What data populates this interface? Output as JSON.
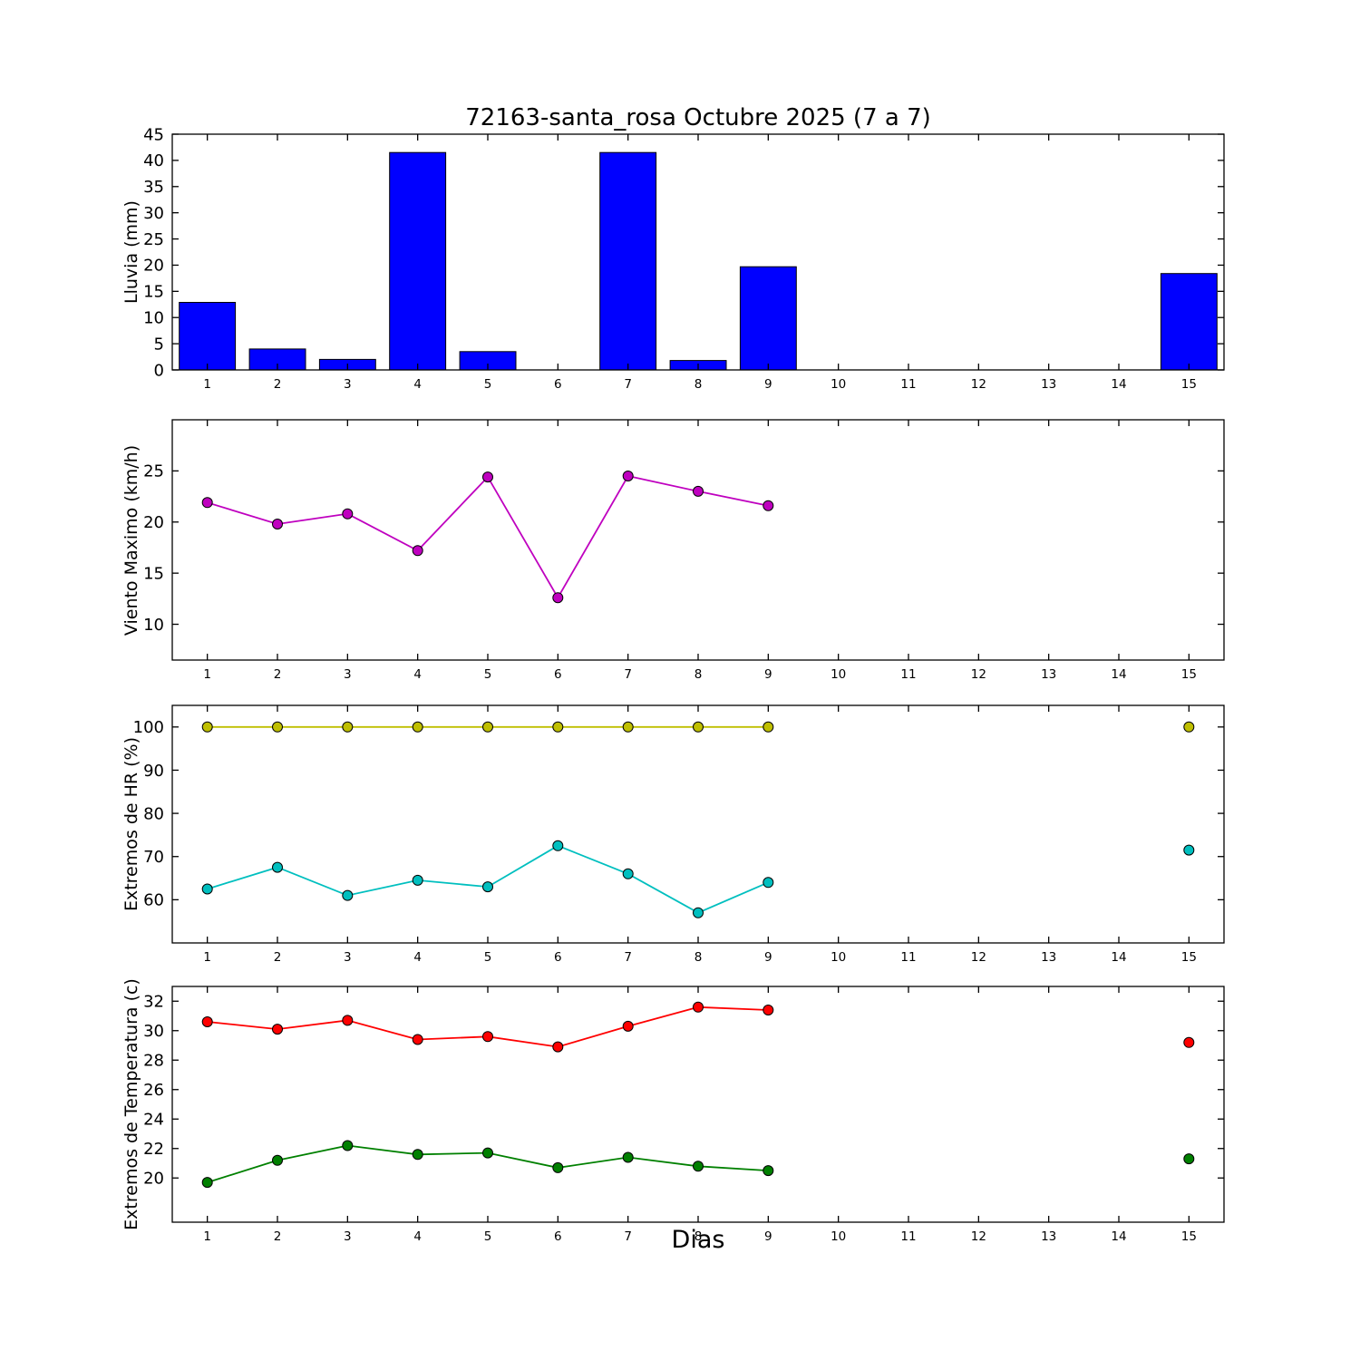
{
  "figure": {
    "title": "72163-santa_rosa Octubre 2025  (7 a 7)",
    "xlabel": "Dias",
    "background": "#ffffff"
  },
  "chart_data": [
    {
      "type": "bar",
      "name": "lluvia",
      "ylabel": "Lluvia (mm)",
      "bar_color": "#0000ff",
      "bar_edge_color": "#000000",
      "bar_width": 0.8,
      "x": [
        1,
        2,
        3,
        4,
        5,
        6,
        7,
        8,
        9,
        10,
        11,
        12,
        13,
        14,
        15
      ],
      "values": [
        12.9,
        4.0,
        2.0,
        41.5,
        3.5,
        0,
        41.5,
        1.8,
        19.7,
        0,
        0,
        0,
        0,
        0,
        18.4
      ],
      "xlim": [
        0.5,
        15.5
      ],
      "ylim": [
        0,
        45
      ],
      "yticks": [
        0,
        5,
        10,
        15,
        20,
        25,
        30,
        35,
        40,
        45
      ],
      "xticks": [
        1,
        2,
        3,
        4,
        5,
        6,
        7,
        8,
        9,
        10,
        11,
        12,
        13,
        14,
        15
      ],
      "grid": false
    },
    {
      "type": "line",
      "name": "viento",
      "ylabel": "Viento Maximo (km/h)",
      "x": [
        1,
        2,
        3,
        4,
        5,
        6,
        7,
        8,
        9,
        10,
        11,
        12,
        13,
        14,
        15
      ],
      "series": [
        {
          "name": "viento_maximo",
          "color": "#bf00bf",
          "values": [
            21.9,
            19.8,
            20.8,
            17.2,
            24.4,
            12.6,
            24.5,
            23.0,
            21.6,
            null,
            null,
            null,
            null,
            null,
            null
          ]
        }
      ],
      "xlim": [
        0.5,
        15.5
      ],
      "ylim": [
        6.5,
        30
      ],
      "yticks": [
        10,
        15,
        20,
        25
      ],
      "xticks": [
        1,
        2,
        3,
        4,
        5,
        6,
        7,
        8,
        9,
        10,
        11,
        12,
        13,
        14,
        15
      ],
      "grid": false
    },
    {
      "type": "line",
      "name": "humedad",
      "ylabel": "Extremos de HR (%)",
      "x": [
        1,
        2,
        3,
        4,
        5,
        6,
        7,
        8,
        9,
        10,
        11,
        12,
        13,
        14,
        15
      ],
      "series": [
        {
          "name": "hr_maxima",
          "color": "#bfbf00",
          "values": [
            100,
            100,
            100,
            100,
            100,
            100,
            100,
            100,
            100,
            null,
            null,
            null,
            null,
            null,
            100
          ]
        },
        {
          "name": "hr_minima",
          "color": "#00bfbf",
          "values": [
            62.5,
            67.5,
            61.0,
            64.5,
            63.0,
            72.5,
            66.0,
            57.0,
            64.0,
            null,
            null,
            null,
            null,
            null,
            71.5
          ]
        }
      ],
      "xlim": [
        0.5,
        15.5
      ],
      "ylim": [
        50,
        105
      ],
      "yticks": [
        60,
        70,
        80,
        90,
        100
      ],
      "xticks": [
        1,
        2,
        3,
        4,
        5,
        6,
        7,
        8,
        9,
        10,
        11,
        12,
        13,
        14,
        15
      ],
      "grid": false
    },
    {
      "type": "line",
      "name": "temperatura",
      "ylabel": "Extremos de Temperatura (c)",
      "x": [
        1,
        2,
        3,
        4,
        5,
        6,
        7,
        8,
        9,
        10,
        11,
        12,
        13,
        14,
        15
      ],
      "series": [
        {
          "name": "temperatura_maxima",
          "color": "#ff0000",
          "values": [
            30.6,
            30.1,
            30.7,
            29.4,
            29.6,
            28.9,
            30.3,
            31.6,
            31.4,
            null,
            null,
            null,
            null,
            null,
            29.2
          ]
        },
        {
          "name": "temperatura_minima",
          "color": "#008000",
          "values": [
            19.7,
            21.2,
            22.2,
            21.6,
            21.7,
            20.7,
            21.4,
            20.8,
            20.5,
            null,
            null,
            null,
            null,
            null,
            21.3
          ]
        }
      ],
      "xlim": [
        0.5,
        15.5
      ],
      "ylim": [
        17,
        33
      ],
      "yticks": [
        20,
        22,
        24,
        26,
        28,
        30,
        32
      ],
      "xticks": [
        1,
        2,
        3,
        4,
        5,
        6,
        7,
        8,
        9,
        10,
        11,
        12,
        13,
        14,
        15
      ],
      "grid": false
    }
  ]
}
